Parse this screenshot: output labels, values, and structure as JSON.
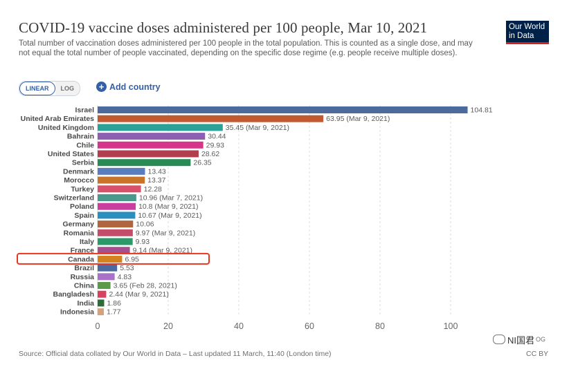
{
  "header": {
    "title": "COVID-19 vaccine doses administered per 100 people, Mar 10, 2021",
    "subtitle": "Total number of vaccination doses administered per 100 people in the total population. This is counted as a single dose, and may not equal the total number of people vaccinated, depending on the specific dose regime (e.g. people receive multiple doses).",
    "logo_line1": "Our World",
    "logo_line2": "in Data"
  },
  "controls": {
    "linear_label": "LINEAR",
    "log_label": "LOG",
    "add_country_label": "Add country"
  },
  "footer": {
    "source": "Source: Official data collated by Our World in Data – Last updated 11 March, 11:40 (London time)",
    "license": "CC BY"
  },
  "watermark": {
    "text": "NI国君",
    "tail": "OG"
  },
  "colors": {
    "highlight": "#e8331f",
    "grid": "#dddddd",
    "axis": "#666666"
  },
  "chart_data": {
    "type": "bar",
    "orientation": "horizontal",
    "xlim": [
      0,
      110
    ],
    "xticks": [
      0,
      20,
      40,
      60,
      80,
      100
    ],
    "grid": "vertical dashed",
    "highlighted_category": "Canada",
    "categories": [
      "Israel",
      "United Arab Emirates",
      "United Kingdom",
      "Bahrain",
      "Chile",
      "United States",
      "Serbia",
      "Denmark",
      "Morocco",
      "Turkey",
      "Switzerland",
      "Poland",
      "Spain",
      "Germany",
      "Romania",
      "Italy",
      "France",
      "Canada",
      "Brazil",
      "Russia",
      "China",
      "Bangladesh",
      "India",
      "Indonesia"
    ],
    "values": [
      104.81,
      63.95,
      35.45,
      30.44,
      29.93,
      28.62,
      26.35,
      13.43,
      13.37,
      12.28,
      10.96,
      10.8,
      10.67,
      10.06,
      9.97,
      9.93,
      9.14,
      6.95,
      5.53,
      4.83,
      3.65,
      2.44,
      1.86,
      1.77
    ],
    "value_labels": [
      "104.81",
      "63.95 (Mar 9, 2021)",
      "35.45 (Mar 9, 2021)",
      "30.44",
      "29.93",
      "28.62",
      "26.35",
      "13.43",
      "13.37",
      "12.28",
      "10.96 (Mar 7, 2021)",
      "10.8 (Mar 9, 2021)",
      "10.67 (Mar 9, 2021)",
      "10.06",
      "9.97 (Mar 9, 2021)",
      "9.93",
      "9.14 (Mar 9, 2021)",
      "6.95",
      "5.53",
      "4.83",
      "3.65 (Feb 28, 2021)",
      "2.44 (Mar 9, 2021)",
      "1.86",
      "1.77"
    ],
    "colors": [
      "#4c6a9c",
      "#c15a32",
      "#2aa198",
      "#8c5fb0",
      "#d6358a",
      "#b23f50",
      "#2a8a55",
      "#5a7dbf",
      "#c8742a",
      "#d9506a",
      "#4a9a8c",
      "#c93fa0",
      "#2c8ebf",
      "#b0653f",
      "#c34e6c",
      "#2a9a6a",
      "#a64f8e",
      "#d4821f",
      "#4c6aa0",
      "#a873c6",
      "#5c9a4a",
      "#d64362",
      "#2f6a3a",
      "#d6a27a"
    ]
  }
}
